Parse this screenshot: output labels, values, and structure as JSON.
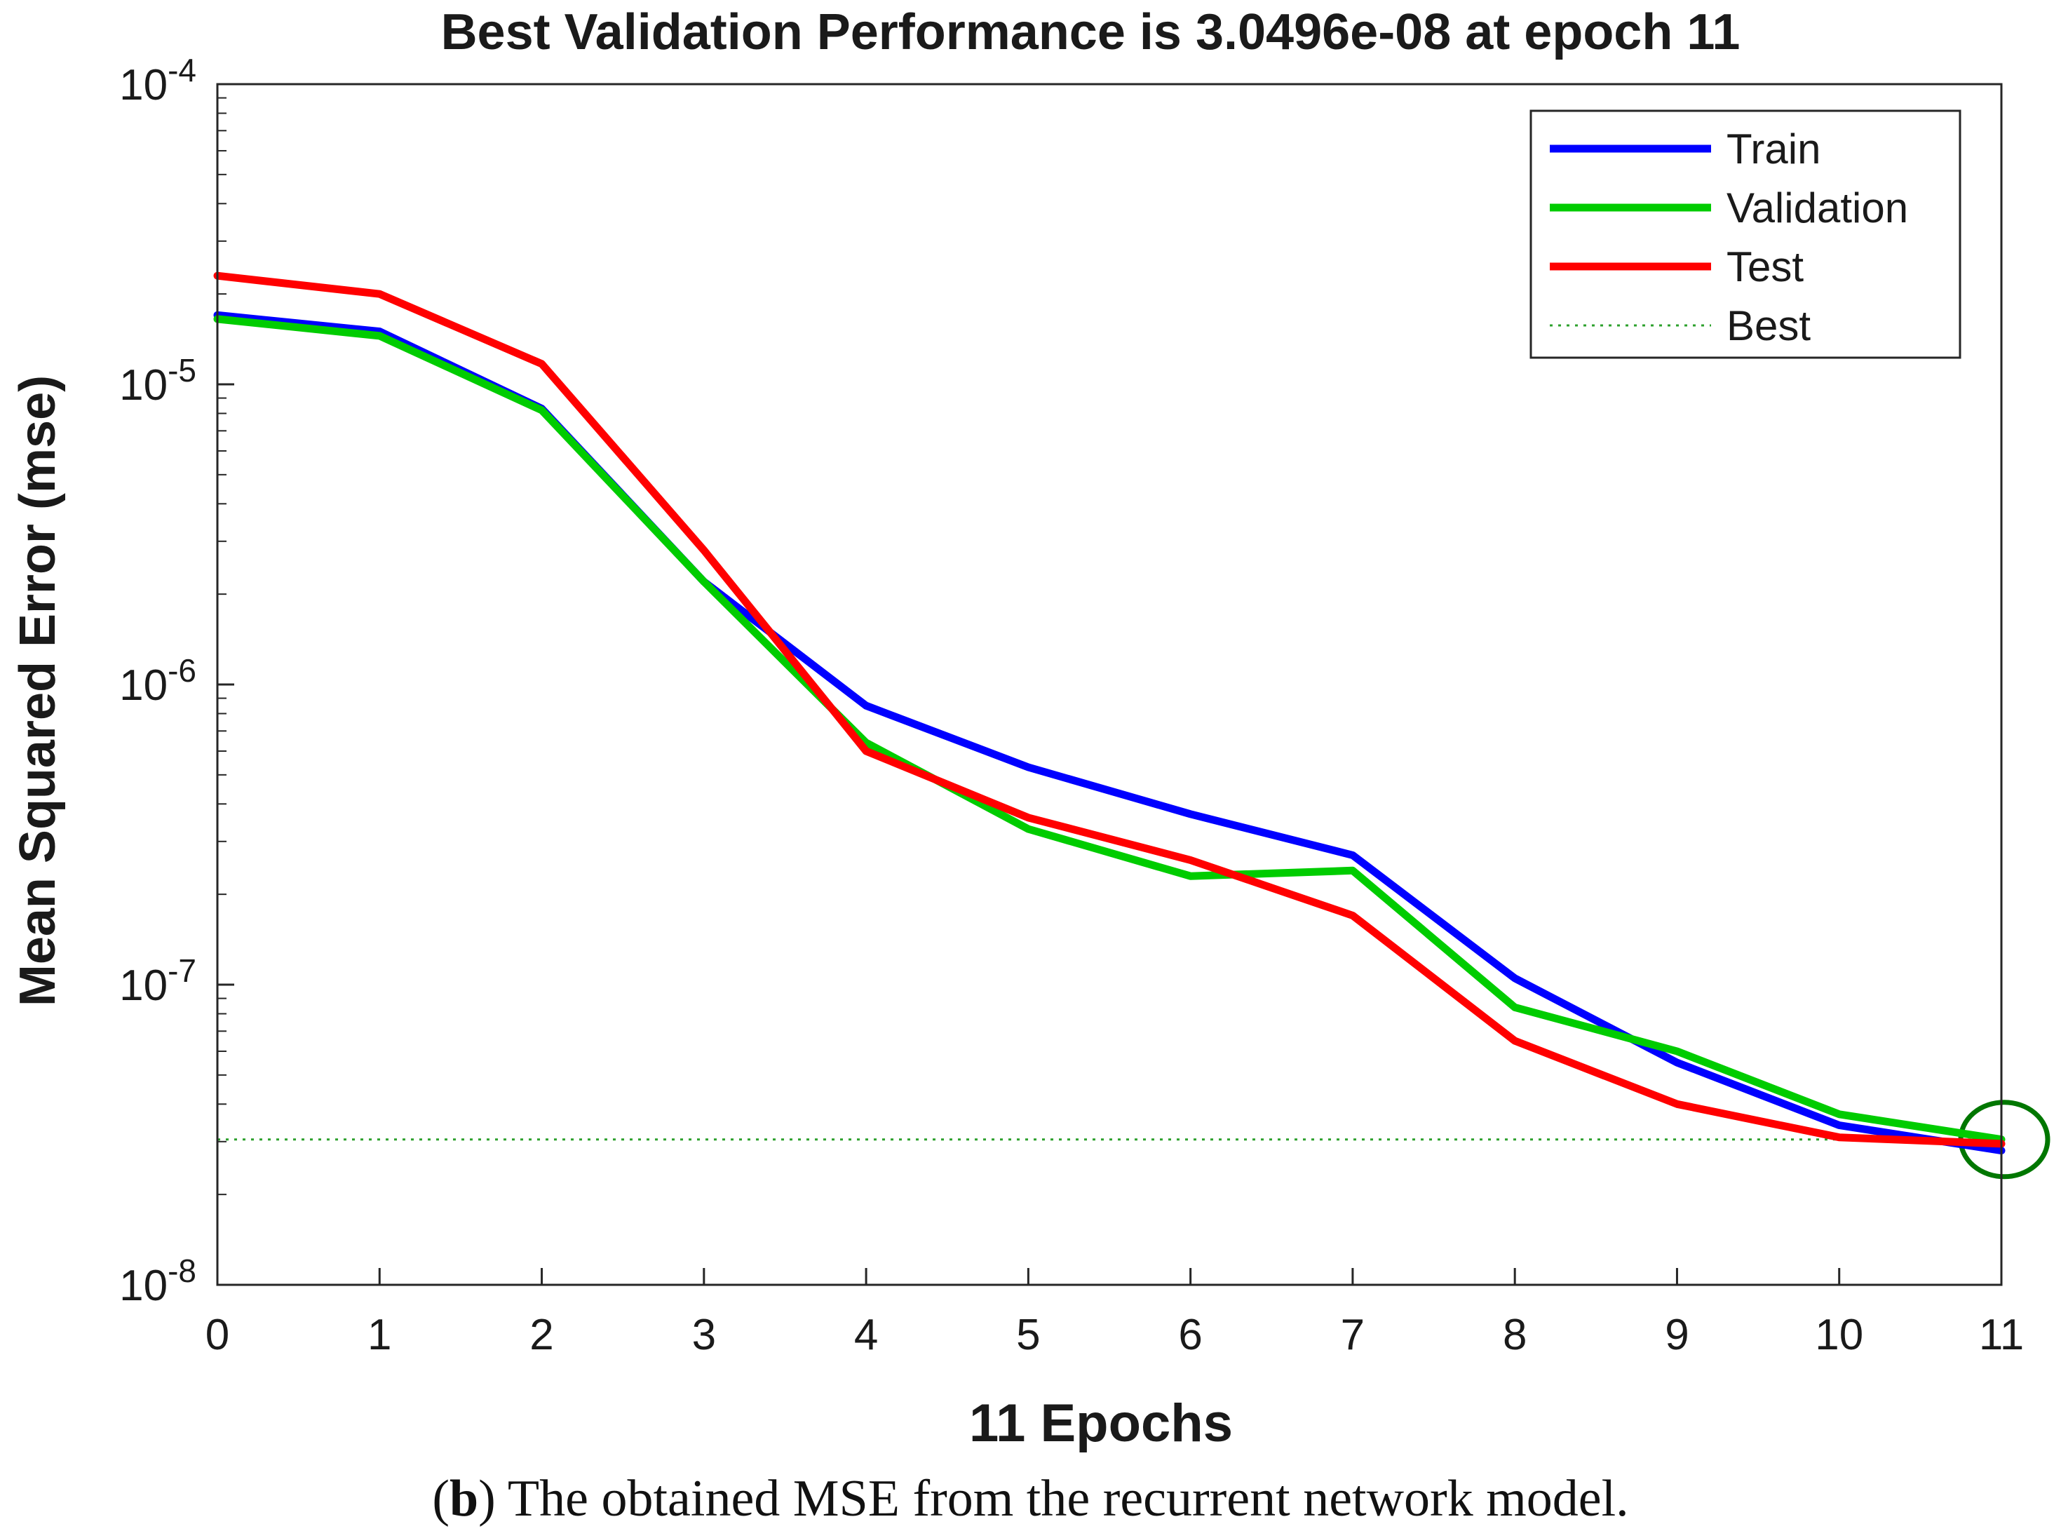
{
  "chart_data": {
    "type": "line",
    "title": "Best Validation Performance is 3.0496e-08 at epoch 11",
    "xlabel": "11 Epochs",
    "ylabel": "Mean Squared Error  (mse)",
    "xlim": [
      0,
      11
    ],
    "ylim": [
      1e-08,
      0.0001
    ],
    "yscale": "log",
    "x_ticks": [
      0,
      1,
      2,
      3,
      4,
      5,
      6,
      7,
      8,
      9,
      10,
      11
    ],
    "y_ticks": [
      {
        "value": 0.0001,
        "base": "10",
        "exp": "-4"
      },
      {
        "value": 1e-05,
        "base": "10",
        "exp": "-5"
      },
      {
        "value": 1e-06,
        "base": "10",
        "exp": "-6"
      },
      {
        "value": 1e-07,
        "base": "10",
        "exp": "-7"
      },
      {
        "value": 1e-08,
        "base": "10",
        "exp": "-8"
      }
    ],
    "x": [
      0,
      1,
      2,
      3,
      4,
      5,
      6,
      7,
      8,
      9,
      10,
      11
    ],
    "series": [
      {
        "name": "Train",
        "color": "#0000ff",
        "values": [
          1.7e-05,
          1.5e-05,
          8.3e-06,
          2.2e-06,
          8.5e-07,
          5.3e-07,
          3.7e-07,
          2.7e-07,
          1.05e-07,
          5.5e-08,
          3.4e-08,
          2.8e-08
        ]
      },
      {
        "name": "Validation",
        "color": "#00cc00",
        "values": [
          1.65e-05,
          1.45e-05,
          8.2e-06,
          2.2e-06,
          6.4e-07,
          3.3e-07,
          2.3e-07,
          2.4e-07,
          8.4e-08,
          6e-08,
          3.7e-08,
          3.05e-08
        ]
      },
      {
        "name": "Test",
        "color": "#ff0000",
        "values": [
          2.3e-05,
          2e-05,
          1.17e-05,
          2.8e-06,
          6e-07,
          3.6e-07,
          2.6e-07,
          1.7e-07,
          6.5e-08,
          4e-08,
          3.1e-08,
          2.95e-08
        ]
      }
    ],
    "best": {
      "name": "Best",
      "color": "#2ca02c",
      "epoch": 11,
      "value": 3.0496e-08,
      "marker_color": "#007700"
    },
    "grid": false,
    "legend_position": "top-right"
  },
  "caption": {
    "open": "(",
    "letter": "b",
    "text": ") The obtained MSE from the recurrent network model."
  }
}
